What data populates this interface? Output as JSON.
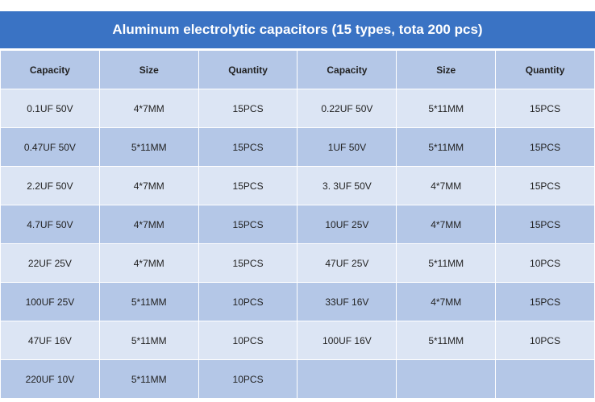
{
  "table": {
    "title": "Aluminum electrolytic capacitors (15 types, tota 200 pcs)",
    "header": [
      "Capacity",
      "Size",
      "Quantity",
      "Capacity",
      "Size",
      "Quantity"
    ],
    "rows": [
      [
        "0.1UF 50V",
        "4*7MM",
        "15PCS",
        "0.22UF 50V",
        "5*11MM",
        "15PCS"
      ],
      [
        "0.47UF 50V",
        "5*11MM",
        "15PCS",
        "1UF 50V",
        "5*11MM",
        "15PCS"
      ],
      [
        "2.2UF 50V",
        "4*7MM",
        "15PCS",
        "3. 3UF 50V",
        "4*7MM",
        "15PCS"
      ],
      [
        "4.7UF 50V",
        "4*7MM",
        "15PCS",
        "10UF 25V",
        "4*7MM",
        "15PCS"
      ],
      [
        "22UF 25V",
        "4*7MM",
        "15PCS",
        "47UF 25V",
        "5*11MM",
        "10PCS"
      ],
      [
        "100UF 25V",
        "5*11MM",
        "10PCS",
        "33UF 16V",
        "4*7MM",
        "15PCS"
      ],
      [
        "47UF 16V",
        "5*11MM",
        "10PCS",
        "100UF 16V",
        "5*11MM",
        "10PCS"
      ],
      [
        "220UF 10V",
        "5*11MM",
        "10PCS"
      ]
    ]
  }
}
